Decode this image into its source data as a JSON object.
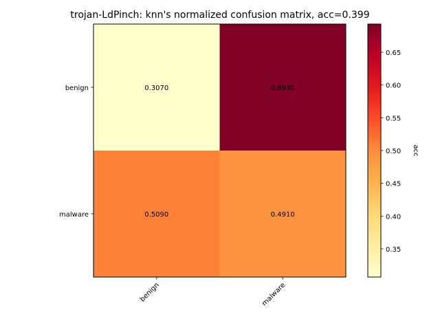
{
  "chart_data": {
    "type": "heatmap",
    "title": "trojan-LdPinch: knn's normalized confusion matrix, acc=0.399",
    "row_labels": [
      "benign",
      "malware"
    ],
    "col_labels": [
      "benign",
      "malware"
    ],
    "values": [
      [
        0.307,
        0.693
      ],
      [
        0.509,
        0.491
      ]
    ],
    "cell_text": [
      [
        "0.3070",
        "0.6930"
      ],
      [
        "0.5090",
        "0.4910"
      ]
    ],
    "colorbar": {
      "label": "acc",
      "colormap": "YlOrRd",
      "min": 0.307,
      "max": 0.693,
      "ticks": [
        0.35,
        0.4,
        0.45,
        0.5,
        0.55,
        0.6,
        0.65
      ],
      "tick_labels": [
        "0.35",
        "0.40",
        "0.45",
        "0.50",
        "0.55",
        "0.60",
        "0.65"
      ]
    },
    "colormap_stops": [
      "#ffffcc",
      "#ffeda0",
      "#fed976",
      "#feb24c",
      "#fd8d3c",
      "#fc4e2a",
      "#e31a1c",
      "#bd0026",
      "#800026"
    ]
  }
}
